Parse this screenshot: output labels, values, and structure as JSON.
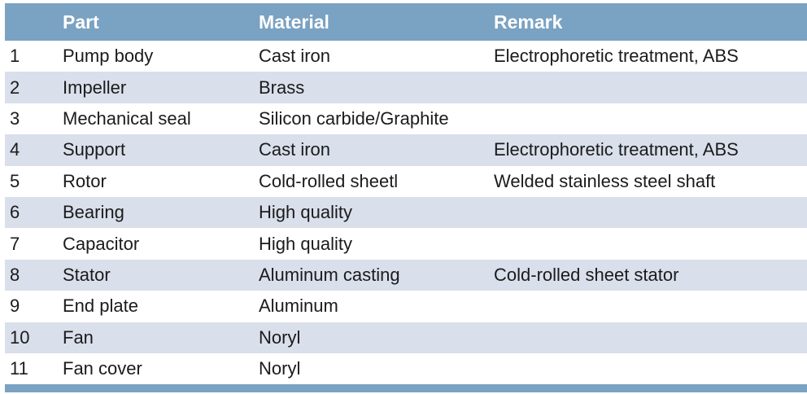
{
  "table": {
    "header": {
      "number": "",
      "part": "Part",
      "material": "Material",
      "remark": "Remark"
    },
    "rows": [
      {
        "no": "1",
        "part": "Pump body",
        "material": "Cast iron",
        "remark": "Electrophoretic treatment, ABS"
      },
      {
        "no": "2",
        "part": "Impeller",
        "material": "Brass",
        "remark": ""
      },
      {
        "no": "3",
        "part": "Mechanical seal",
        "material": "Silicon carbide/Graphite",
        "remark": ""
      },
      {
        "no": "4",
        "part": "Support",
        "material": "Cast iron",
        "remark": "Electrophoretic treatment, ABS"
      },
      {
        "no": "5",
        "part": "Rotor",
        "material": "Cold-rolled sheetl",
        "remark": "Welded stainless steel shaft"
      },
      {
        "no": "6",
        "part": "Bearing",
        "material": "High quality",
        "remark": ""
      },
      {
        "no": "7",
        "part": "Capacitor",
        "material": "High quality",
        "remark": ""
      },
      {
        "no": "8",
        "part": "Stator",
        "material": "Aluminum casting",
        "remark": "Cold-rolled sheet stator"
      },
      {
        "no": "9",
        "part": "End plate",
        "material": "Aluminum",
        "remark": ""
      },
      {
        "no": "10",
        "part": "Fan",
        "material": "Noryl",
        "remark": ""
      },
      {
        "no": "11",
        "part": "Fan cover",
        "material": "Noryl",
        "remark": ""
      }
    ],
    "colors": {
      "header_bg": "#7aa2c2",
      "header_text": "#ffffff",
      "stripe_bg": "#d9dfeb",
      "body_text": "#1b1b1b",
      "page_bg": "#ffffff"
    }
  }
}
